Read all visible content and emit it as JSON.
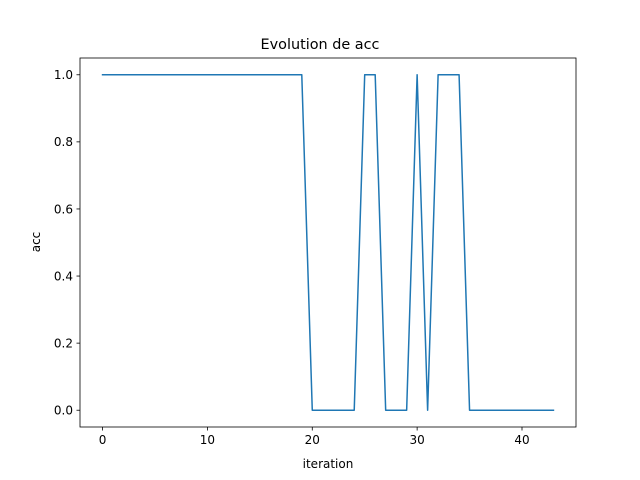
{
  "chart_data": {
    "type": "line",
    "title": "Evolution de acc",
    "xlabel": "iteration",
    "ylabel": "acc",
    "xlim": [
      -2.15,
      45.15
    ],
    "ylim": [
      -0.05,
      1.05
    ],
    "grid": false,
    "xticks": [
      0,
      10,
      20,
      30,
      40
    ],
    "yticks": [
      0.0,
      0.2,
      0.4,
      0.6,
      0.8,
      1.0
    ],
    "xtick_labels": [
      "0",
      "10",
      "20",
      "30",
      "40"
    ],
    "ytick_labels": [
      "0.0",
      "0.2",
      "0.4",
      "0.6",
      "0.8",
      "1.0"
    ],
    "series": [
      {
        "color": "#1f77b4",
        "x": [
          0,
          1,
          2,
          3,
          4,
          5,
          6,
          7,
          8,
          9,
          10,
          11,
          12,
          13,
          14,
          15,
          16,
          17,
          18,
          19,
          20,
          21,
          22,
          23,
          24,
          25,
          26,
          27,
          28,
          29,
          30,
          31,
          32,
          33,
          34,
          35,
          36,
          37,
          38,
          39,
          40,
          41,
          42,
          43
        ],
        "y": [
          1,
          1,
          1,
          1,
          1,
          1,
          1,
          1,
          1,
          1,
          1,
          1,
          1,
          1,
          1,
          1,
          1,
          1,
          1,
          1,
          0,
          0,
          0,
          0,
          0,
          1,
          1,
          0,
          0,
          0,
          1,
          0,
          1,
          1,
          1,
          0,
          0,
          0,
          0,
          0,
          0,
          0,
          0,
          0
        ]
      }
    ]
  }
}
